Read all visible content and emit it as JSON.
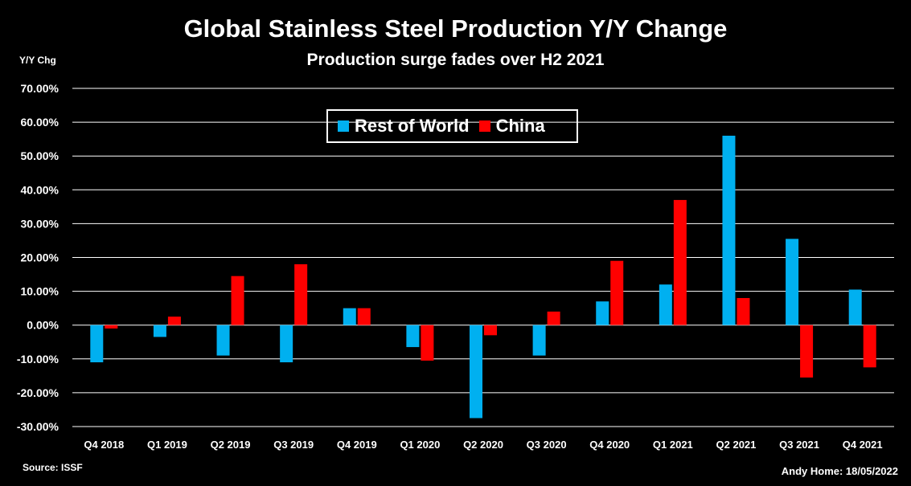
{
  "chart_data": {
    "type": "bar",
    "title": "Global Stainless Steel Production Y/Y Change",
    "subtitle": "Production surge fades over H2 2021",
    "ylabel": "Y/Y Chg",
    "xlabel": "",
    "ylim": [
      -30,
      70
    ],
    "ytick_step": 10,
    "ytick_labels": [
      "70.00%",
      "60.00%",
      "50.00%",
      "40.00%",
      "30.00%",
      "20.00%",
      "10.00%",
      "0.00%",
      "-10.00%",
      "-20.00%",
      "-30.00%"
    ],
    "categories": [
      "Q4 2018",
      "Q1 2019",
      "Q2 2019",
      "Q3 2019",
      "Q4 2019",
      "Q1 2020",
      "Q2 2020",
      "Q3 2020",
      "Q4 2020",
      "Q1 2021",
      "Q2 2021",
      "Q3 2021",
      "Q4 2021"
    ],
    "series": [
      {
        "name": "Rest of World",
        "color": "#00B0F0",
        "values": [
          -11,
          -3.5,
          -9,
          -11,
          5,
          -6.5,
          -27.5,
          -9,
          7,
          12,
          56,
          25.5,
          10.5
        ]
      },
      {
        "name": "China",
        "color": "#FF0000",
        "values": [
          -1,
          2.5,
          14.5,
          18,
          5,
          -10.5,
          -3,
          4,
          19,
          37,
          8,
          -15.5,
          -12.5
        ]
      }
    ],
    "grid": true,
    "legend_position": "top-center",
    "source": "Source: ISSF",
    "credit": "Andy Home: 18/05/2022"
  }
}
